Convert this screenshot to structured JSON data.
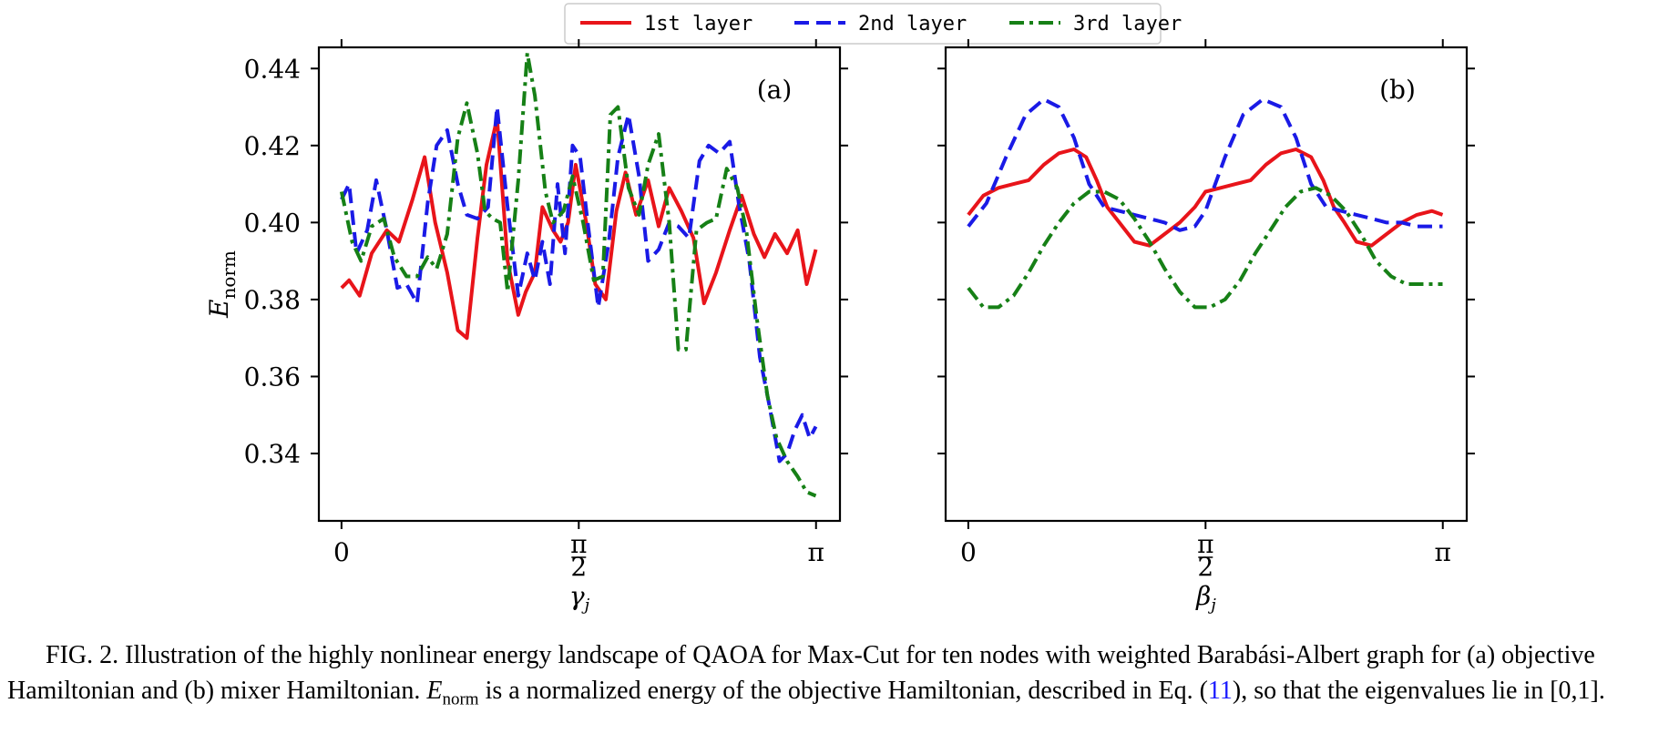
{
  "legend": [
    {
      "label": "1st layer",
      "color": "#e8141a",
      "dash": "solid"
    },
    {
      "label": "2nd layer",
      "color": "#1a1ae6",
      "dash": "dashed"
    },
    {
      "label": "3rd layer",
      "color": "#168016",
      "dash": "dashdot"
    }
  ],
  "caption": {
    "part1": "FIG. 2.  Illustration of the highly nonlinear energy landscape of QAOA for Max-Cut for ten nodes with weighted Barabási-Albert graph for (a) objective Hamiltonian and (b) mixer Hamiltonian. ",
    "e_main": "E",
    "e_sub": "norm",
    "part2": " is a normalized energy of the objective Hamiltonian, described in Eq. (",
    "ref": "11",
    "part3": "), so that the eigenvalues lie in [0,1]."
  },
  "chart_data": [
    {
      "type": "line",
      "panel_label": "(a)",
      "xlabel_main": "γ",
      "xlabel_sub": "j",
      "ylabel_main": "E",
      "ylabel_sub": "norm",
      "xlim": [
        -0.15,
        3.3
      ],
      "ylim": [
        0.3225,
        0.4455
      ],
      "xticks": [
        {
          "value": 0,
          "label": "0"
        },
        {
          "value": 1.5708,
          "label": "π/2",
          "num": "π",
          "den": "2"
        },
        {
          "value": 3.1416,
          "label": "π"
        }
      ],
      "yticks": [
        {
          "value": 0.34,
          "label": "0.34"
        },
        {
          "value": 0.36,
          "label": "0.36"
        },
        {
          "value": 0.38,
          "label": "0.38"
        },
        {
          "value": 0.4,
          "label": "0.40"
        },
        {
          "value": 0.42,
          "label": "0.42"
        },
        {
          "value": 0.44,
          "label": "0.44"
        }
      ],
      "series": [
        {
          "name": "1st layer",
          "color": "#e8141a",
          "dash": "solid",
          "x": [
            0,
            0.05,
            0.12,
            0.2,
            0.3,
            0.38,
            0.47,
            0.55,
            0.62,
            0.7,
            0.77,
            0.83,
            0.9,
            0.96,
            1.03,
            1.1,
            1.17,
            1.22,
            1.28,
            1.33,
            1.4,
            1.45,
            1.5,
            1.55,
            1.62,
            1.68,
            1.75,
            1.82,
            1.88,
            1.95,
            2.03,
            2.1,
            2.17,
            2.25,
            2.33,
            2.4,
            2.48,
            2.57,
            2.65,
            2.73,
            2.8,
            2.87,
            2.95,
            3.02,
            3.08,
            3.14
          ],
          "y": [
            0.383,
            0.385,
            0.381,
            0.392,
            0.398,
            0.395,
            0.406,
            0.417,
            0.4,
            0.387,
            0.372,
            0.37,
            0.396,
            0.415,
            0.427,
            0.39,
            0.376,
            0.382,
            0.387,
            0.404,
            0.398,
            0.395,
            0.4,
            0.415,
            0.4,
            0.384,
            0.38,
            0.403,
            0.413,
            0.402,
            0.411,
            0.399,
            0.409,
            0.403,
            0.396,
            0.379,
            0.387,
            0.398,
            0.407,
            0.397,
            0.391,
            0.397,
            0.392,
            0.398,
            0.384,
            0.393
          ]
        },
        {
          "name": "2nd layer",
          "color": "#1a1ae6",
          "dash": "dashed",
          "x": [
            0,
            0.05,
            0.1,
            0.17,
            0.23,
            0.3,
            0.37,
            0.43,
            0.5,
            0.57,
            0.63,
            0.7,
            0.77,
            0.83,
            0.9,
            0.97,
            1.03,
            1.1,
            1.17,
            1.23,
            1.28,
            1.33,
            1.38,
            1.43,
            1.48,
            1.53,
            1.58,
            1.63,
            1.7,
            1.77,
            1.83,
            1.9,
            1.97,
            2.03,
            2.1,
            2.17,
            2.23,
            2.3,
            2.37,
            2.43,
            2.5,
            2.57,
            2.63,
            2.7,
            2.77,
            2.83,
            2.9,
            2.95,
            3.0,
            3.05,
            3.1,
            3.14
          ],
          "y": [
            0.406,
            0.41,
            0.392,
            0.398,
            0.411,
            0.398,
            0.383,
            0.384,
            0.379,
            0.405,
            0.42,
            0.424,
            0.41,
            0.402,
            0.401,
            0.404,
            0.43,
            0.404,
            0.381,
            0.392,
            0.385,
            0.395,
            0.384,
            0.41,
            0.392,
            0.42,
            0.417,
            0.4,
            0.378,
            0.395,
            0.417,
            0.428,
            0.412,
            0.39,
            0.393,
            0.4,
            0.399,
            0.396,
            0.416,
            0.42,
            0.418,
            0.421,
            0.405,
            0.39,
            0.365,
            0.353,
            0.338,
            0.34,
            0.346,
            0.35,
            0.344,
            0.347
          ]
        },
        {
          "name": "3rd layer",
          "color": "#168016",
          "dash": "dashdot",
          "x": [
            0,
            0.07,
            0.13,
            0.2,
            0.28,
            0.35,
            0.43,
            0.5,
            0.57,
            0.63,
            0.7,
            0.77,
            0.83,
            0.9,
            0.95,
            1.0,
            1.05,
            1.1,
            1.17,
            1.23,
            1.28,
            1.35,
            1.4,
            1.47,
            1.53,
            1.6,
            1.67,
            1.73,
            1.78,
            1.83,
            1.9,
            1.97,
            2.03,
            2.1,
            2.17,
            2.23,
            2.28,
            2.35,
            2.42,
            2.48,
            2.55,
            2.62,
            2.68,
            2.75,
            2.82,
            2.88,
            2.95,
            3.02,
            3.08,
            3.14
          ],
          "y": [
            0.408,
            0.395,
            0.39,
            0.399,
            0.401,
            0.391,
            0.386,
            0.386,
            0.391,
            0.388,
            0.397,
            0.422,
            0.431,
            0.418,
            0.403,
            0.401,
            0.4,
            0.382,
            0.411,
            0.444,
            0.433,
            0.408,
            0.4,
            0.403,
            0.412,
            0.4,
            0.385,
            0.386,
            0.428,
            0.43,
            0.409,
            0.402,
            0.415,
            0.423,
            0.4,
            0.367,
            0.367,
            0.398,
            0.4,
            0.401,
            0.414,
            0.409,
            0.398,
            0.375,
            0.355,
            0.344,
            0.338,
            0.334,
            0.33,
            0.329
          ]
        }
      ]
    },
    {
      "type": "line",
      "panel_label": "(b)",
      "xlabel_main": "β",
      "xlabel_sub": "j",
      "xlim": [
        -0.15,
        3.3
      ],
      "ylim": [
        0.3225,
        0.4455
      ],
      "xticks": [
        {
          "value": 0,
          "label": "0"
        },
        {
          "value": 1.5708,
          "label": "π/2",
          "num": "π",
          "den": "2"
        },
        {
          "value": 3.1416,
          "label": "π"
        }
      ],
      "series": [
        {
          "name": "1st layer",
          "color": "#e8141a",
          "dash": "solid",
          "x": [
            0,
            0.1,
            0.2,
            0.3,
            0.4,
            0.5,
            0.6,
            0.7,
            0.78,
            0.85,
            0.92,
            1.0,
            1.1,
            1.2,
            1.3,
            1.4,
            1.5,
            1.57,
            1.67,
            1.77,
            1.87,
            1.97,
            2.07,
            2.17,
            2.27,
            2.35,
            2.42,
            2.49,
            2.57,
            2.67,
            2.77,
            2.87,
            2.97,
            3.07,
            3.14
          ],
          "y": [
            0.402,
            0.407,
            0.409,
            0.41,
            0.411,
            0.415,
            0.418,
            0.419,
            0.417,
            0.411,
            0.404,
            0.4,
            0.395,
            0.394,
            0.397,
            0.4,
            0.404,
            0.408,
            0.409,
            0.41,
            0.411,
            0.415,
            0.418,
            0.419,
            0.417,
            0.411,
            0.404,
            0.4,
            0.395,
            0.394,
            0.397,
            0.4,
            0.402,
            0.403,
            0.402
          ]
        },
        {
          "name": "2nd layer",
          "color": "#1a1ae6",
          "dash": "dashed",
          "x": [
            0,
            0.12,
            0.25,
            0.38,
            0.5,
            0.6,
            0.7,
            0.8,
            0.9,
            1.0,
            1.1,
            1.2,
            1.3,
            1.4,
            1.5,
            1.57,
            1.7,
            1.82,
            1.95,
            2.07,
            2.17,
            2.27,
            2.37,
            2.47,
            2.57,
            2.67,
            2.77,
            2.87,
            2.97,
            3.07,
            3.14
          ],
          "y": [
            0.399,
            0.405,
            0.417,
            0.428,
            0.432,
            0.43,
            0.422,
            0.41,
            0.404,
            0.403,
            0.402,
            0.401,
            0.4,
            0.398,
            0.399,
            0.403,
            0.417,
            0.428,
            0.432,
            0.43,
            0.422,
            0.41,
            0.404,
            0.403,
            0.402,
            0.401,
            0.4,
            0.4,
            0.399,
            0.399,
            0.399
          ]
        },
        {
          "name": "3rd layer",
          "color": "#168016",
          "dash": "dashdot",
          "x": [
            0,
            0.1,
            0.2,
            0.3,
            0.4,
            0.5,
            0.6,
            0.7,
            0.8,
            0.9,
            1.0,
            1.1,
            1.2,
            1.3,
            1.4,
            1.5,
            1.6,
            1.7,
            1.8,
            1.9,
            2.0,
            2.1,
            2.2,
            2.3,
            2.4,
            2.5,
            2.6,
            2.7,
            2.8,
            2.9,
            3.0,
            3.1,
            3.14
          ],
          "y": [
            0.383,
            0.378,
            0.378,
            0.381,
            0.387,
            0.394,
            0.4,
            0.405,
            0.408,
            0.408,
            0.406,
            0.401,
            0.395,
            0.388,
            0.382,
            0.378,
            0.378,
            0.38,
            0.385,
            0.392,
            0.398,
            0.404,
            0.408,
            0.409,
            0.407,
            0.403,
            0.397,
            0.39,
            0.386,
            0.384,
            0.384,
            0.384,
            0.384
          ]
        }
      ]
    }
  ]
}
